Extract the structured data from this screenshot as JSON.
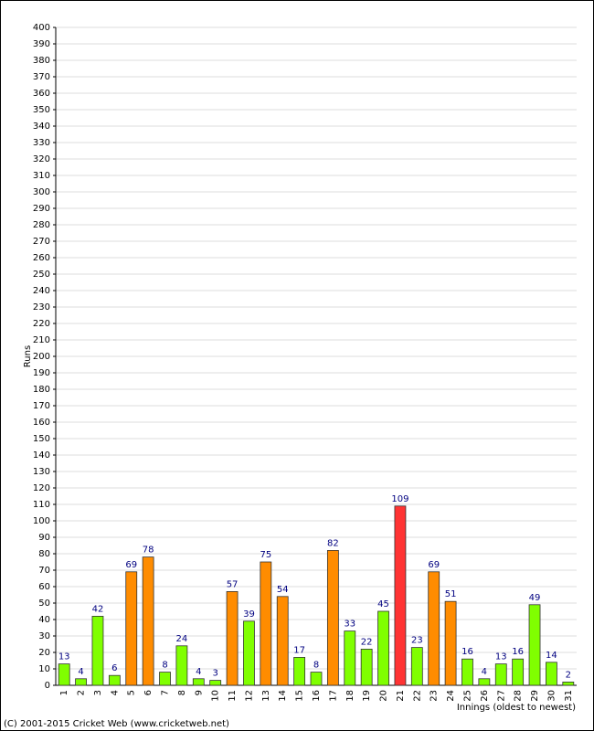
{
  "chart_data": {
    "type": "bar",
    "y_label": "Runs",
    "x_label": "Innings (oldest to newest)",
    "footer": "(C) 2001-2015 Cricket Web (www.cricketweb.net)",
    "categories": [
      "1",
      "2",
      "3",
      "4",
      "5",
      "6",
      "7",
      "8",
      "9",
      "10",
      "11",
      "12",
      "13",
      "14",
      "15",
      "16",
      "17",
      "18",
      "19",
      "20",
      "21",
      "22",
      "23",
      "24",
      "25",
      "26",
      "27",
      "28",
      "29",
      "30",
      "31"
    ],
    "values": [
      13,
      4,
      42,
      6,
      69,
      78,
      8,
      24,
      4,
      3,
      57,
      39,
      75,
      54,
      17,
      8,
      82,
      33,
      22,
      45,
      109,
      23,
      69,
      51,
      16,
      4,
      13,
      16,
      49,
      14,
      2
    ],
    "colors": [
      "#80ff00",
      "#80ff00",
      "#80ff00",
      "#80ff00",
      "#ff8c00",
      "#ff8c00",
      "#80ff00",
      "#80ff00",
      "#80ff00",
      "#80ff00",
      "#ff8c00",
      "#80ff00",
      "#ff8c00",
      "#ff8c00",
      "#80ff00",
      "#80ff00",
      "#ff8c00",
      "#80ff00",
      "#80ff00",
      "#80ff00",
      "#ff3333",
      "#80ff00",
      "#ff8c00",
      "#ff8c00",
      "#80ff00",
      "#80ff00",
      "#80ff00",
      "#80ff00",
      "#80ff00",
      "#80ff00",
      "#80ff00"
    ],
    "ylim": [
      0,
      400
    ],
    "yticks": [
      0,
      10,
      20,
      30,
      40,
      50,
      60,
      70,
      80,
      90,
      100,
      110,
      120,
      130,
      140,
      150,
      160,
      170,
      180,
      190,
      200,
      210,
      220,
      230,
      240,
      250,
      260,
      270,
      280,
      290,
      300,
      310,
      320,
      330,
      340,
      350,
      360,
      370,
      380,
      390,
      400
    ],
    "grid": true
  }
}
